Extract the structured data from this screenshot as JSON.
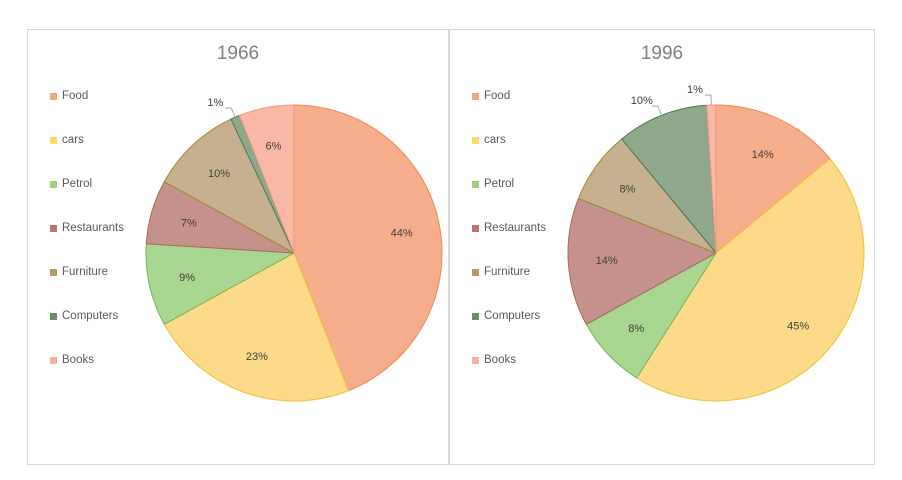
{
  "legend": [
    "Food",
    "cars",
    "Petrol",
    "Restaurants",
    "Furniture",
    "Computers",
    "Books"
  ],
  "colors": {
    "fills": [
      "#f5ad8b",
      "#fdd98a",
      "#a8d590",
      "#c5928b",
      "#c6b08e",
      "#8fa88c",
      "#f9b8a6"
    ],
    "swatches": [
      "#f4a77f",
      "#ffd766",
      "#9fd17f",
      "#b6786d",
      "#b59b66",
      "#6b8e68",
      "#f4b3a0"
    ],
    "strokes": [
      "#ef8a52",
      "#f2c230",
      "#74b655",
      "#a86a58",
      "#a08a3c",
      "#4f7a4f",
      "#e99a82"
    ]
  },
  "chart_data": [
    {
      "type": "pie",
      "title": "1966",
      "categories": [
        "Food",
        "cars",
        "Petrol",
        "Restaurants",
        "Furniture",
        "Computers",
        "Books"
      ],
      "values": [
        44,
        23,
        9,
        7,
        10,
        1,
        6
      ],
      "labels": [
        "44%",
        "23%",
        "9%",
        "7%",
        "10%",
        "1%",
        "6%"
      ]
    },
    {
      "type": "pie",
      "title": "1996",
      "categories": [
        "Food",
        "cars",
        "Petrol",
        "Restaurants",
        "Furniture",
        "Computers",
        "Books"
      ],
      "values": [
        14,
        45,
        8,
        14,
        8,
        10,
        1
      ],
      "labels": [
        "14%",
        "45%",
        "8%",
        "14%",
        "8%",
        "10%",
        "1%"
      ]
    }
  ]
}
